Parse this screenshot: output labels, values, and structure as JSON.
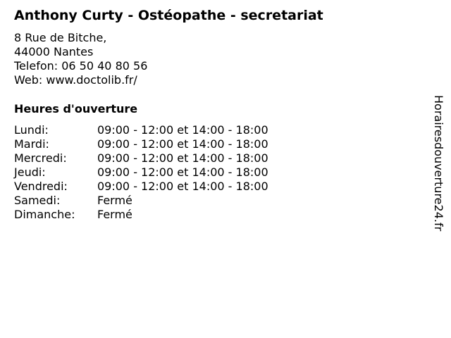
{
  "title": "Anthony Curty - Ostéopathe - secretariat",
  "address": [
    "8 Rue de Bitche,",
    "44000 Nantes",
    "Telefon: 06 50 40 80 56",
    "Web: www.doctolib.fr/"
  ],
  "hours_heading": "Heures d'ouverture",
  "hours": [
    {
      "day": "Lundi:",
      "time": "09:00 - 12:00 et 14:00 - 18:00"
    },
    {
      "day": "Mardi:",
      "time": "09:00 - 12:00 et 14:00 - 18:00"
    },
    {
      "day": "Mercredi:",
      "time": "09:00 - 12:00 et 14:00 - 18:00"
    },
    {
      "day": "Jeudi:",
      "time": "09:00 - 12:00 et 14:00 - 18:00"
    },
    {
      "day": "Vendredi:",
      "time": "09:00 - 12:00 et 14:00 - 18:00"
    },
    {
      "day": "Samedi:",
      "time": "Fermé"
    },
    {
      "day": "Dimanche:",
      "time": "Fermé"
    }
  ],
  "watermark": "Horairesdouverture24.fr"
}
